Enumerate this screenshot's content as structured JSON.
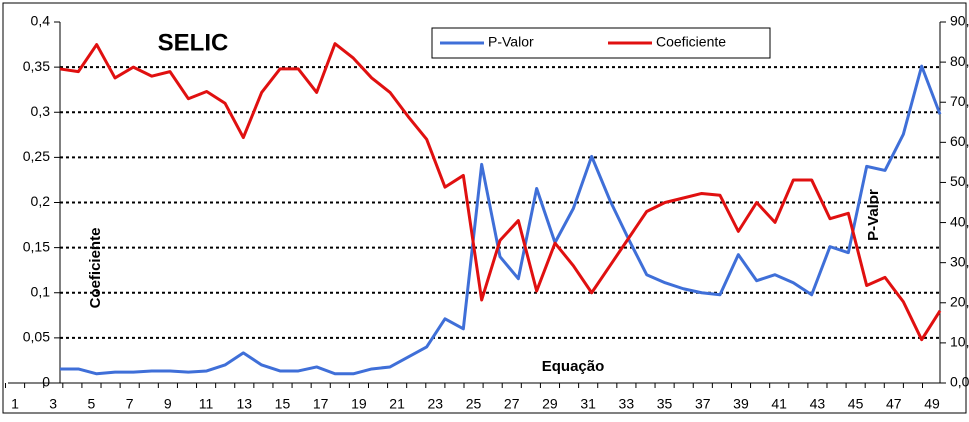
{
  "chart_data": {
    "type": "line",
    "title": "SELIC",
    "x_label": "Equação",
    "y_label": "Coeficiente",
    "y2_label": "P-Valor",
    "categories": [
      "1",
      null,
      "3",
      null,
      "5",
      null,
      "7",
      null,
      "9",
      null,
      "11",
      null,
      "13",
      null,
      "15",
      null,
      "17",
      null,
      "19",
      null,
      "21",
      null,
      "23",
      null,
      "25",
      null,
      "27",
      null,
      "29",
      null,
      "31",
      null,
      "33",
      null,
      "35",
      null,
      "37",
      null,
      "39",
      null,
      "41",
      null,
      "43",
      null,
      "45",
      null,
      "47",
      null,
      "49"
    ],
    "series": [
      {
        "name": "P-Valor",
        "color": "#3f6fd8",
        "axis": "y2",
        "values": [
          3.5,
          3.5,
          2.3,
          2.7,
          2.7,
          3.0,
          3.0,
          2.7,
          3.0,
          4.5,
          7.5,
          4.5,
          3.0,
          3.0,
          4.0,
          2.3,
          2.3,
          3.5,
          4.0,
          6.5,
          9.0,
          16.0,
          13.5,
          54.5,
          31.5,
          26.0,
          48.5,
          35.0,
          43.5,
          56.5,
          45.5,
          36.0,
          27.0,
          25.0,
          23.5,
          22.5,
          22.0,
          32.0,
          25.5,
          27.0,
          25.0,
          22.0,
          34.0,
          32.5,
          54.0,
          53.0,
          62.0,
          79.0,
          67.0
        ]
      },
      {
        "name": "Coeficiente",
        "color": "#e01010",
        "values": [
          0.348,
          0.345,
          0.375,
          0.338,
          0.35,
          0.34,
          0.345,
          0.315,
          0.323,
          0.31,
          0.272,
          0.322,
          0.348,
          0.348,
          0.322,
          0.376,
          0.36,
          0.338,
          0.322,
          0.295,
          0.27,
          0.217,
          0.23,
          0.092,
          0.158,
          0.18,
          0.102,
          0.155,
          0.13,
          0.1,
          0.13,
          0.16,
          0.19,
          0.2,
          0.205,
          0.21,
          0.208,
          0.168,
          0.2,
          0.178,
          0.225,
          0.225,
          0.182,
          0.188,
          0.108,
          0.117,
          0.09,
          0.048,
          0.08
        ]
      }
    ],
    "ylim": [
      0,
      0.4
    ],
    "yticks": [
      0,
      {
        "value": 0.05,
        "label": "0,05"
      },
      {
        "value": 0.1,
        "label": "0,1"
      },
      {
        "value": 0.15,
        "label": "0,15"
      },
      {
        "value": 0.2,
        "label": "0,2"
      },
      {
        "value": 0.25,
        "label": "0,25"
      },
      {
        "value": 0.3,
        "label": "0,3"
      },
      {
        "value": 0.35,
        "label": "0,35"
      },
      {
        "value": 0.4,
        "label": "0,4"
      }
    ],
    "y2lim": [
      0,
      90
    ],
    "y2ticks": [
      {
        "value": 0,
        "label": "0,00%"
      },
      {
        "value": 10,
        "label": "10,00%"
      },
      {
        "value": 20,
        "label": "20,00%"
      },
      {
        "value": 30,
        "label": "30,00%"
      },
      {
        "value": 40,
        "label": "40,00%"
      },
      {
        "value": 50,
        "label": "50,00%"
      },
      {
        "value": 60,
        "label": "60,00%"
      },
      {
        "value": 70,
        "label": "70,00%"
      },
      {
        "value": 80,
        "label": "80,00%"
      },
      {
        "value": 90,
        "label": "90,00%"
      }
    ],
    "grid": true,
    "legend": "top"
  }
}
